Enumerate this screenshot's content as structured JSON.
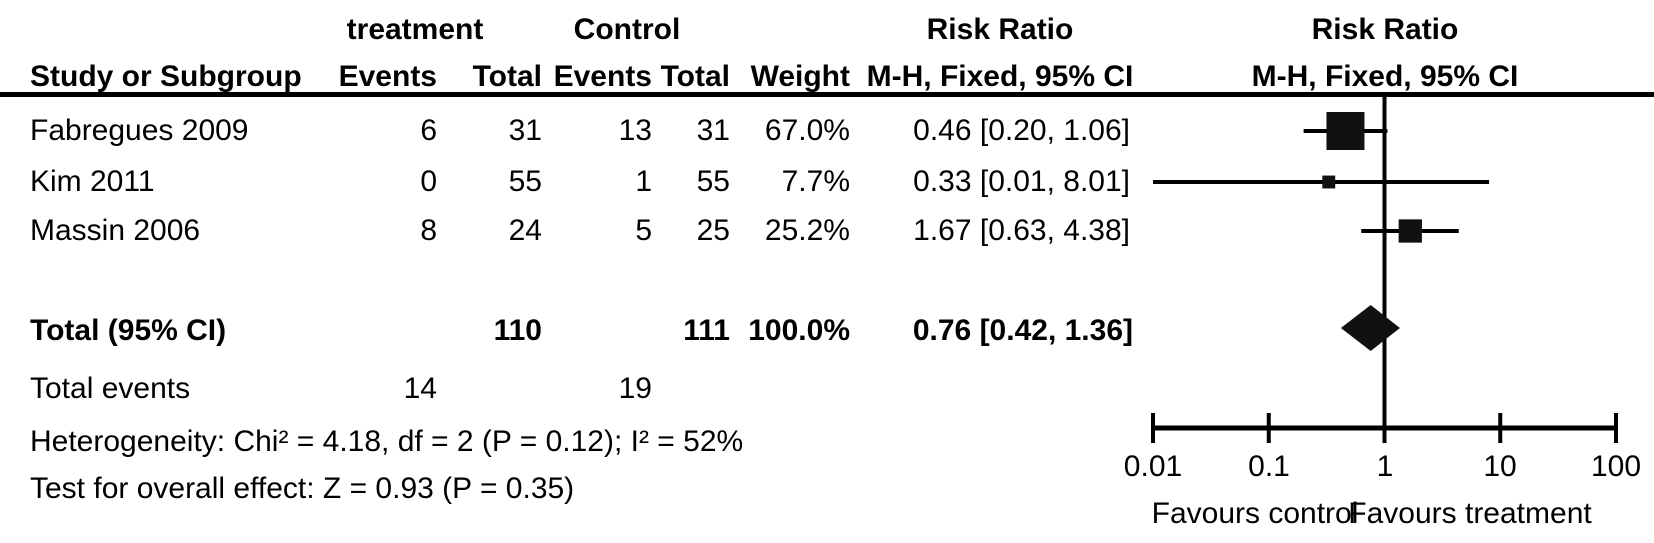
{
  "table": {
    "group_headers": {
      "treatment": "treatment",
      "control": "Control"
    },
    "risk_ratio_header_text": "Risk Ratio",
    "risk_ratio_header_plot": "Risk Ratio",
    "col_headers": {
      "study": "Study or Subgroup",
      "t_events": "Events",
      "t_total": "Total",
      "c_events": "Events",
      "c_total": "Total",
      "weight": "Weight",
      "mh_text": "M-H, Fixed, 95% CI",
      "mh_plot": "M-H, Fixed, 95% CI"
    },
    "rows": [
      {
        "study": "Fabregues 2009",
        "t_events": "6",
        "t_total": "31",
        "c_events": "13",
        "c_total": "31",
        "weight": "67.0%",
        "rr": "0.46 [0.20, 1.06]"
      },
      {
        "study": "Kim 2011",
        "t_events": "0",
        "t_total": "55",
        "c_events": "1",
        "c_total": "55",
        "weight": "7.7%",
        "rr": "0.33 [0.01, 8.01]"
      },
      {
        "study": "Massin 2006",
        "t_events": "8",
        "t_total": "24",
        "c_events": "5",
        "c_total": "25",
        "weight": "25.2%",
        "rr": "1.67 [0.63, 4.38]"
      }
    ],
    "total_row": {
      "label": "Total (95% CI)",
      "t_total": "110",
      "c_total": "111",
      "weight": "100.0%",
      "rr": "0.76 [0.42, 1.36]"
    },
    "total_events": {
      "label": "Total events",
      "t": "14",
      "c": "19"
    },
    "heterogeneity": "Heterogeneity: Chi² = 4.18, df = 2 (P = 0.12); I² = 52%",
    "overall_effect": "Test for overall effect: Z = 0.93 (P = 0.35)"
  },
  "chart_data": {
    "type": "forest",
    "scale": "log10",
    "xlim": [
      0.01,
      100
    ],
    "null_line": 1,
    "axis_ticks": [
      0.01,
      0.1,
      1,
      10,
      100
    ],
    "axis_tick_labels": [
      "0.01",
      "0.1",
      "1",
      "10",
      "100"
    ],
    "favours_left": "Favours control",
    "favours_right": "Favours treatment",
    "grid": false,
    "marker_color": "#111111",
    "line_color": "#000000",
    "studies": [
      {
        "name": "Fabregues 2009",
        "rr": 0.46,
        "ci_low": 0.2,
        "ci_high": 1.06,
        "weight_pct": 67.0
      },
      {
        "name": "Kim 2011",
        "rr": 0.33,
        "ci_low": 0.01,
        "ci_high": 8.01,
        "weight_pct": 7.7
      },
      {
        "name": "Massin 2006",
        "rr": 1.67,
        "ci_low": 0.63,
        "ci_high": 4.38,
        "weight_pct": 25.2
      }
    ],
    "total": {
      "rr": 0.76,
      "ci_low": 0.42,
      "ci_high": 1.36
    }
  }
}
